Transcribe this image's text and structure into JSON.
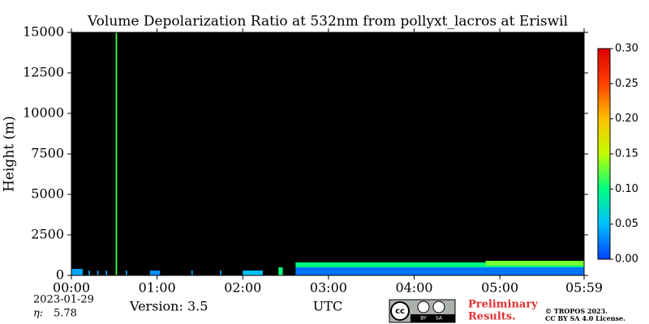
{
  "chart_data": {
    "type": "heatmap",
    "title": "Volume Depolarization Ratio at 532nm from pollyxt_lacros at Eriswil",
    "ylabel": "Height (m)",
    "xlabel": "UTC",
    "xlim": [
      0,
      359
    ],
    "xticks": [
      {
        "value": 0,
        "label": "00:00"
      },
      {
        "value": 60,
        "label": "01:00"
      },
      {
        "value": 120,
        "label": "02:00"
      },
      {
        "value": 180,
        "label": "03:00"
      },
      {
        "value": 240,
        "label": "04:00"
      },
      {
        "value": 300,
        "label": "05:00"
      },
      {
        "value": 359,
        "label": "05:59"
      }
    ],
    "ylim": [
      0,
      15000
    ],
    "yticks": [
      0,
      2500,
      5000,
      7500,
      10000,
      12500,
      15000
    ],
    "background": "#000000",
    "colormap": [
      "#0040ff",
      "#00c0ff",
      "#00ff80",
      "#c0ff00",
      "#ffc000",
      "#ff4000",
      "#e00000"
    ],
    "clim": [
      0,
      0.3
    ],
    "cticks": [
      {
        "value": 0,
        "label": "0.00"
      },
      {
        "value": 0.05,
        "label": "0.05"
      },
      {
        "value": 0.1,
        "label": "0.10"
      },
      {
        "value": 0.15,
        "label": "0.15"
      },
      {
        "value": 0.2,
        "label": "0.20"
      },
      {
        "value": 0.25,
        "label": "0.25"
      },
      {
        "value": 0.3,
        "label": "0.30"
      }
    ],
    "cells": [
      {
        "x": [
          0,
          8
        ],
        "y": [
          0,
          400
        ],
        "value": 0.04
      },
      {
        "x": [
          12,
          13
        ],
        "y": [
          0,
          300
        ],
        "value": 0.04
      },
      {
        "x": [
          18,
          19
        ],
        "y": [
          0,
          300
        ],
        "value": 0.04
      },
      {
        "x": [
          24,
          25
        ],
        "y": [
          0,
          300
        ],
        "value": 0.04
      },
      {
        "x": [
          31,
          32
        ],
        "y": [
          0,
          15000
        ],
        "value": 0.12
      },
      {
        "x": [
          38,
          39
        ],
        "y": [
          0,
          300
        ],
        "value": 0.04
      },
      {
        "x": [
          55,
          56
        ],
        "y": [
          0,
          300
        ],
        "value": 0.04
      },
      {
        "x": [
          56,
          62
        ],
        "y": [
          0,
          300
        ],
        "value": 0.03
      },
      {
        "x": [
          84,
          85
        ],
        "y": [
          0,
          300
        ],
        "value": 0.04
      },
      {
        "x": [
          104,
          105
        ],
        "y": [
          0,
          300
        ],
        "value": 0.04
      },
      {
        "x": [
          120,
          134
        ],
        "y": [
          0,
          300
        ],
        "value": 0.05
      },
      {
        "x": [
          145,
          148
        ],
        "y": [
          0,
          500
        ],
        "value": 0.1
      },
      {
        "x": [
          157,
          359
        ],
        "y": [
          0,
          500
        ],
        "value": 0.02
      },
      {
        "x": [
          157,
          359
        ],
        "y": [
          500,
          800
        ],
        "value": 0.1
      },
      {
        "x": [
          290,
          359
        ],
        "y": [
          600,
          900
        ],
        "value": 0.13
      }
    ]
  },
  "footer": {
    "date": "2023-01-29",
    "eta_label": "η:",
    "eta": "5.78",
    "version": "Version: 3.5",
    "badge": [
      "BY",
      "SA"
    ],
    "preliminary": [
      "Preliminary",
      "Results."
    ],
    "copyright": [
      "© TROPOS 2023.",
      "CC BY SA 4.0 License."
    ]
  }
}
